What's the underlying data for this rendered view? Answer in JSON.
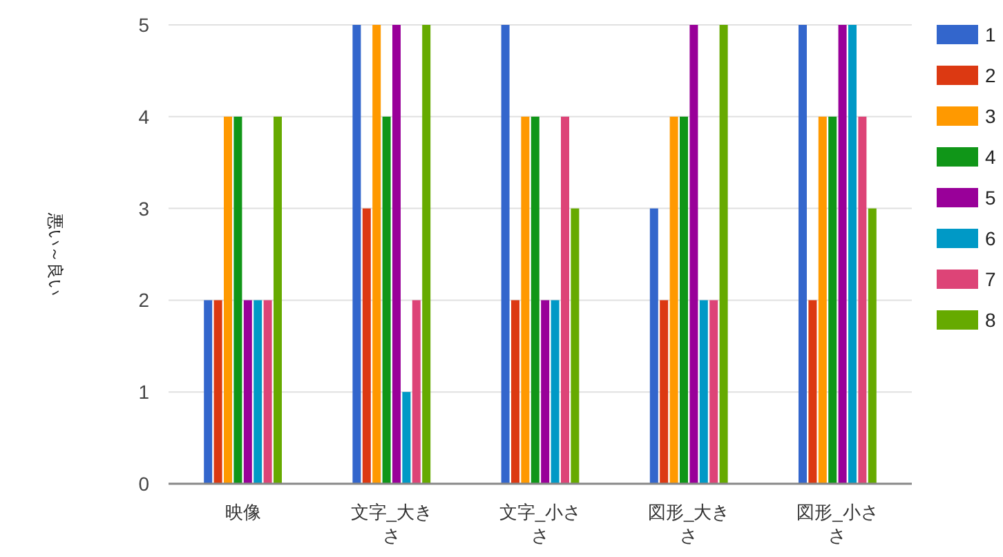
{
  "chart_data": {
    "type": "bar",
    "ylabel": "悪い～良い",
    "categories": [
      "映像",
      "文字_大きさ",
      "文字_小ささ",
      "図形_大きさ",
      "図形_小ささ"
    ],
    "series": [
      {
        "name": "1",
        "color": "#3366cc",
        "values": [
          2,
          5,
          5,
          3,
          5
        ]
      },
      {
        "name": "2",
        "color": "#dc3912",
        "values": [
          2,
          3,
          2,
          2,
          2
        ]
      },
      {
        "name": "3",
        "color": "#ff9900",
        "values": [
          4,
          5,
          4,
          4,
          4
        ]
      },
      {
        "name": "4",
        "color": "#109618",
        "values": [
          4,
          4,
          4,
          4,
          4
        ]
      },
      {
        "name": "5",
        "color": "#990099",
        "values": [
          2,
          5,
          2,
          5,
          5
        ]
      },
      {
        "name": "6",
        "color": "#0099c6",
        "values": [
          2,
          1,
          2,
          2,
          5
        ]
      },
      {
        "name": "7",
        "color": "#dd4477",
        "values": [
          2,
          2,
          4,
          2,
          4
        ]
      },
      {
        "name": "8",
        "color": "#66aa00",
        "values": [
          4,
          5,
          3,
          5,
          3
        ]
      }
    ],
    "ylim": [
      0,
      5
    ],
    "yticks": [
      0,
      1,
      2,
      3,
      4,
      5
    ],
    "grid": "y",
    "legend": "right"
  }
}
